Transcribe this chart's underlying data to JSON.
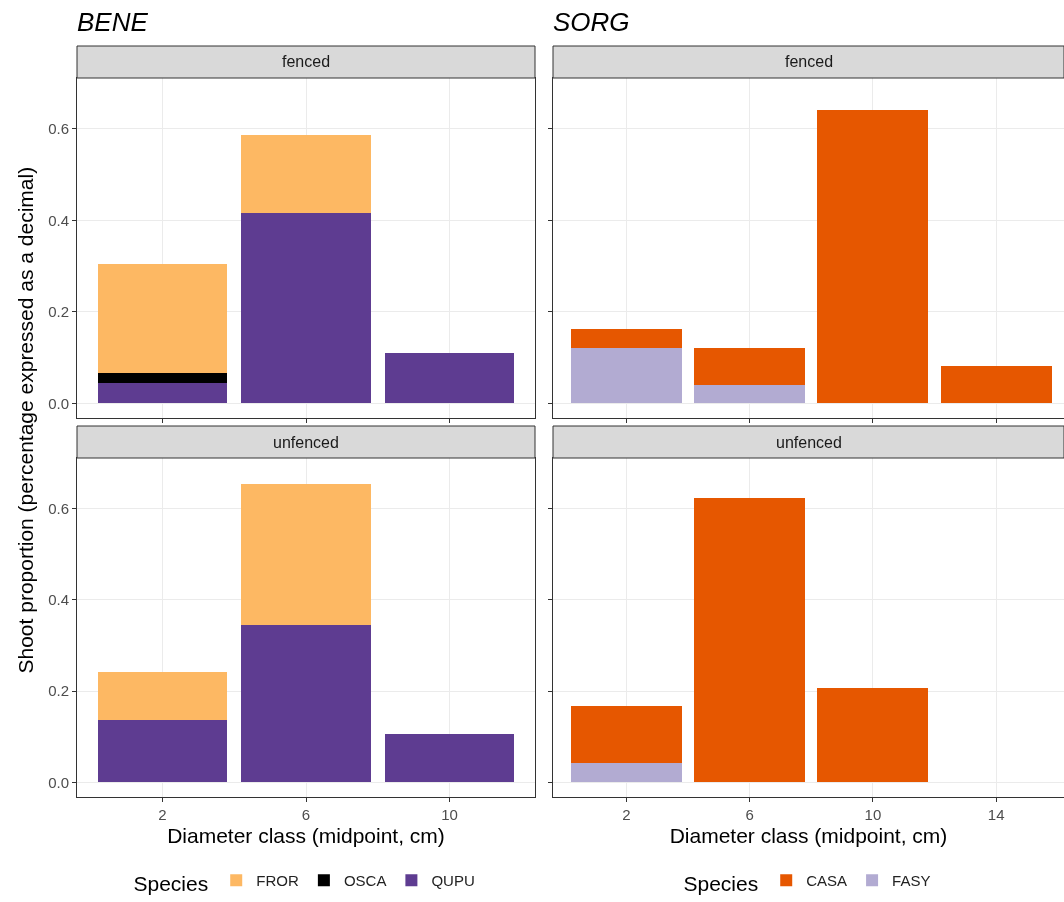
{
  "chart_data": [
    {
      "type": "bar",
      "title": "BENE",
      "subtitle": "fenced",
      "ylabel": "Shoot proportion (percentage expressed as a decimal)",
      "legend_title": "Species",
      "legend": "bottom",
      "stacked": true,
      "x": [
        2,
        6,
        10
      ],
      "xlim": [
        -0.38,
        12.38
      ],
      "xticks": [
        {
          "value": 2,
          "label": null
        },
        {
          "value": 6,
          "label": null
        },
        {
          "value": 10,
          "label": null
        }
      ],
      "ylim": [
        -0.032,
        0.711
      ],
      "yticks": [
        {
          "value": 0,
          "label": "0.0"
        },
        {
          "value": 0.2,
          "label": "0.2"
        },
        {
          "value": 0.4,
          "label": "0.4"
        },
        {
          "value": 0.6,
          "label": "0.6"
        }
      ],
      "grid": true,
      "tick_labels": "y",
      "series": [
        {
          "name": "QUPU",
          "color": "#5e3c91",
          "values": [
            0.045,
            0.415,
            0.11
          ]
        },
        {
          "name": "OSCA",
          "color": "#000000",
          "values": [
            0.022,
            null,
            null
          ]
        },
        {
          "name": "FROR",
          "color": "#fdb863",
          "values": [
            0.238,
            0.172,
            null
          ]
        }
      ]
    },
    {
      "type": "bar",
      "title": "SORG",
      "subtitle": "fenced",
      "legend_title": "Species",
      "legend": "bottom",
      "stacked": true,
      "x": [
        2,
        6,
        10,
        14
      ],
      "xlim": [
        -0.38,
        16.2
      ],
      "xticks": [
        {
          "value": 2,
          "label": null
        },
        {
          "value": 6,
          "label": null
        },
        {
          "value": 10,
          "label": null
        },
        {
          "value": 14,
          "label": null
        }
      ],
      "ylim": [
        -0.032,
        0.711
      ],
      "yticks": [
        {
          "value": 0,
          "label": null
        },
        {
          "value": 0.2,
          "label": null
        },
        {
          "value": 0.4,
          "label": null
        },
        {
          "value": 0.6,
          "label": null
        }
      ],
      "grid": true,
      "tick_labels": false,
      "series": [
        {
          "name": "FASY",
          "color": "#b2abd2",
          "values": [
            0.121,
            0.041,
            null,
            null
          ]
        },
        {
          "name": "CASA",
          "color": "#e65700",
          "values": [
            0.041,
            0.08,
            0.641,
            0.082
          ]
        }
      ]
    },
    {
      "type": "bar",
      "subtitle": "unfenced",
      "xlabel": "Diameter class (midpoint, cm)",
      "stacked": true,
      "x": [
        2,
        6,
        10
      ],
      "xlim": [
        -0.38,
        12.38
      ],
      "xticks": [
        2,
        6,
        10
      ],
      "ylim": [
        -0.032,
        0.711
      ],
      "yticks": [
        {
          "value": 0,
          "label": "0.0"
        },
        {
          "value": 0.2,
          "label": "0.2"
        },
        {
          "value": 0.4,
          "label": "0.4"
        },
        {
          "value": 0.6,
          "label": "0.6"
        }
      ],
      "grid": true,
      "series": [
        {
          "color": "#5e3c91",
          "values": [
            0.137,
            0.345,
            0.105
          ]
        },
        {
          "color": "#fdb863",
          "values": [
            0.104,
            0.31,
            null
          ]
        }
      ]
    },
    {
      "type": "bar",
      "subtitle": "unfenced",
      "xlabel": "Diameter class (midpoint, cm)",
      "stacked": true,
      "x": [
        2,
        6,
        10
      ],
      "xlim": [
        -0.38,
        16.2
      ],
      "xticks": [
        2,
        6,
        10,
        14
      ],
      "ylim": [
        -0.032,
        0.711
      ],
      "yticks": [
        {
          "value": 0,
          "label": null
        },
        {
          "value": 0.2,
          "label": null
        },
        {
          "value": 0.4,
          "label": null
        },
        {
          "value": 0.6,
          "label": null
        }
      ],
      "grid": true,
      "tick_labels": "x",
      "series": [
        {
          "color": "#b2abd2",
          "values": [
            0.043,
            null,
            null
          ]
        },
        {
          "color": "#e65700",
          "values": [
            0.125,
            0.624,
            0.208
          ]
        }
      ]
    }
  ]
}
